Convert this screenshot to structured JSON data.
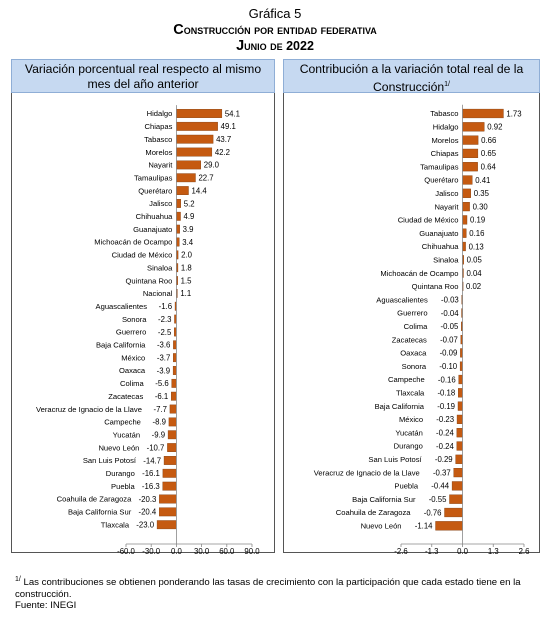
{
  "figure": {
    "title": "Gráfica 5",
    "subtitle": "Construcción por entidad federativa",
    "date": "Junio de 2022",
    "footnote_marker": "1/",
    "footnote": "Las contribuciones se obtienen ponderando las tasas de crecimiento con la participación que cada estado tiene en la construcción.",
    "source": "Fuente: INEGI"
  },
  "colors": {
    "bar": "#c55a11",
    "bar_stroke": "#7f3b0b",
    "header_bg": "#c6d9f1"
  },
  "chart_data": [
    {
      "type": "bar",
      "orientation": "horizontal",
      "title": "Variación porcentual real respecto al mismo mes del año anterior",
      "xlim": [
        -60,
        90
      ],
      "xticks": [
        -60.0,
        -30.0,
        0.0,
        30.0,
        60.0,
        90.0
      ],
      "xtick_labels": [
        "-60.0",
        "-30.0",
        "0.0",
        "30.0",
        "60.0",
        "90.0"
      ],
      "decimals": 1,
      "categories": [
        "Hidalgo",
        "Chiapas",
        "Tabasco",
        "Morelos",
        "Nayarit",
        "Tamaulipas",
        "Querétaro",
        "Jalisco",
        "Chihuahua",
        "Guanajuato",
        "Michoacán de Ocampo",
        "Ciudad de México",
        "Sinaloa",
        "Quintana Roo",
        "Nacional",
        "Aguascalientes",
        "Sonora",
        "Guerrero",
        "Baja California",
        "México",
        "Oaxaca",
        "Colima",
        "Zacatecas",
        "Veracruz de Ignacio de la Llave",
        "Campeche",
        "Yucatán",
        "Nuevo León",
        "San Luis Potosí",
        "Durango",
        "Puebla",
        "Coahuila de Zaragoza",
        "Baja California Sur",
        "Tlaxcala"
      ],
      "values": [
        54.1,
        49.1,
        43.7,
        42.2,
        29.0,
        22.7,
        14.4,
        5.2,
        4.9,
        3.9,
        3.4,
        2.0,
        1.8,
        1.5,
        1.1,
        -1.6,
        -2.3,
        -2.5,
        -3.6,
        -3.7,
        -3.9,
        -5.6,
        -6.1,
        -7.7,
        -8.9,
        -9.9,
        -10.7,
        -14.7,
        -16.1,
        -16.3,
        -20.3,
        -20.4,
        -23.0
      ]
    },
    {
      "type": "bar",
      "orientation": "horizontal",
      "title": "Contribución a la variación total real de la Construcción",
      "title_marker": "1/",
      "xlim": [
        -2.6,
        2.6
      ],
      "xticks": [
        -2.6,
        -1.3,
        0.0,
        1.3,
        2.6
      ],
      "xtick_labels": [
        "-2.6",
        "-1.3",
        "0.0",
        "1.3",
        "2.6"
      ],
      "decimals": 2,
      "categories": [
        "Tabasco",
        "Hidalgo",
        "Morelos",
        "Chiapas",
        "Tamaulipas",
        "Querétaro",
        "Jalisco",
        "Nayarit",
        "Ciudad de México",
        "Guanajuato",
        "Chihuahua",
        "Sinaloa",
        "Michoacán de Ocampo",
        "Quintana Roo",
        "Aguascalientes",
        "Guerrero",
        "Colima",
        "Zacatecas",
        "Oaxaca",
        "Sonora",
        "Campeche",
        "Tlaxcala",
        "Baja California",
        "México",
        "Yucatán",
        "Durango",
        "San Luis Potosí",
        "Veracruz de Ignacio de la Llave",
        "Puebla",
        "Baja California Sur",
        "Coahuila de Zaragoza",
        "Nuevo León"
      ],
      "values": [
        1.73,
        0.92,
        0.66,
        0.65,
        0.64,
        0.41,
        0.35,
        0.3,
        0.19,
        0.16,
        0.13,
        0.05,
        0.04,
        0.02,
        -0.03,
        -0.04,
        -0.05,
        -0.07,
        -0.09,
        -0.1,
        -0.16,
        -0.18,
        -0.19,
        -0.23,
        -0.24,
        -0.24,
        -0.29,
        -0.37,
        -0.44,
        -0.55,
        -0.76,
        -1.14
      ]
    }
  ]
}
